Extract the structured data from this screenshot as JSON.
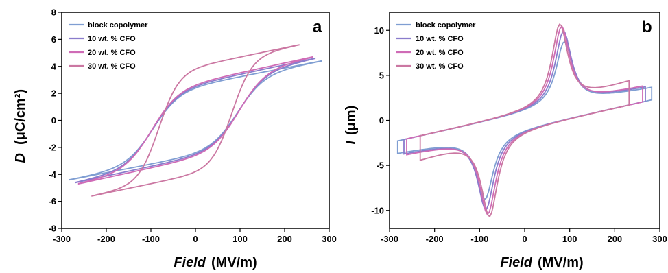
{
  "colors": {
    "block_copolymer": "#7f9ed2",
    "cfo_10": "#8a7ccc",
    "cfo_20": "#cf6bb6",
    "cfo_30": "#cb77a2"
  },
  "chart_data": [
    {
      "type": "line",
      "panel_label": "a",
      "xlabel": "Field",
      "xlabel_unit": "(MV/m)",
      "ylabel": "D",
      "ylabel_unit": "(μC/cm²)",
      "xlim": [
        -300,
        300
      ],
      "ylim": [
        -8,
        8
      ],
      "xticks": [
        -300,
        -200,
        -100,
        0,
        100,
        200,
        300
      ],
      "yticks": [
        -8,
        -6,
        -4,
        -2,
        0,
        2,
        4,
        6,
        8
      ],
      "legend_position": "top-left",
      "series": [
        {
          "name": "block copolymer",
          "color_key": "block_copolymer",
          "emax": 282,
          "dmax": 4.4,
          "pr": 2.6,
          "ec": 95,
          "w": 60
        },
        {
          "name": "10 wt. % CFO",
          "color_key": "cfo_10",
          "emax": 268,
          "dmax": 4.6,
          "pr": 2.7,
          "ec": 97,
          "w": 60
        },
        {
          "name": "20 wt. % CFO",
          "color_key": "cfo_20",
          "emax": 262,
          "dmax": 4.7,
          "pr": 2.8,
          "ec": 98,
          "w": 60
        },
        {
          "name": "30 wt. % CFO",
          "color_key": "cfo_30",
          "emax": 232,
          "dmax": 5.6,
          "pr": 4.0,
          "ec": 82,
          "w": 45
        }
      ]
    },
    {
      "type": "line",
      "panel_label": "b",
      "xlabel": "Field",
      "xlabel_unit": "(MV/m)",
      "ylabel": "I",
      "ylabel_unit": "(μm)",
      "xlim": [
        -300,
        300
      ],
      "ylim": [
        -12,
        12
      ],
      "xticks": [
        -300,
        -200,
        -100,
        0,
        100,
        200,
        300
      ],
      "yticks": [
        -10,
        -5,
        0,
        5,
        10
      ],
      "legend_position": "top-left",
      "series": [
        {
          "name": "block copolymer",
          "color_key": "block_copolymer",
          "emax": 282,
          "peak": 7.4,
          "peak_x": 88,
          "base": 2.3
        },
        {
          "name": "10 wt. % CFO",
          "color_key": "cfo_10",
          "emax": 268,
          "peak": 8.6,
          "peak_x": 86,
          "base": 2.6
        },
        {
          "name": "20 wt. % CFO",
          "color_key": "cfo_20",
          "emax": 262,
          "peak": 9.2,
          "peak_x": 82,
          "base": 2.9
        },
        {
          "name": "30 wt. % CFO",
          "color_key": "cfo_30",
          "emax": 232,
          "peak": 9.5,
          "peak_x": 78,
          "base": 4.8
        }
      ]
    }
  ]
}
